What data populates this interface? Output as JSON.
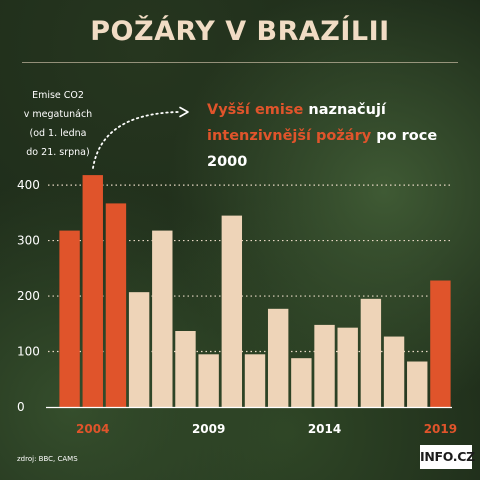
{
  "title": "POŽÁRY V BRAZÍLII",
  "ylabel_lines": [
    "Emise CO2",
    "v megatunách",
    "(od 1. ledna",
    "do 21. srpna)"
  ],
  "annotation": {
    "part1_accent": "Vyšší emise",
    "part2": " naznačují",
    "part3_accent": "intenzivnější požáry",
    "part4": " po roce 2000"
  },
  "source": "zdroj: BBC, CAMS",
  "brand": "INFO.CZ",
  "colors": {
    "highlight": "#e0542b",
    "normal": "#eed4b8",
    "tick_highlight": "#e0542b",
    "tick_normal": "#ffffff"
  },
  "chart_data": {
    "type": "bar",
    "title": "POŽÁRY V BRAZÍLII",
    "ylabel": "Emise CO2 v megatunách (od 1. ledna do 21. srpna)",
    "xlabel": "",
    "ylim": [
      0,
      420
    ],
    "yticks": [
      0,
      100,
      200,
      300,
      400
    ],
    "grid": true,
    "categories": [
      "2003",
      "2004",
      "2005",
      "2006",
      "2007",
      "2008",
      "2009",
      "2010",
      "2011",
      "2012",
      "2013",
      "2014",
      "2015",
      "2016",
      "2017",
      "2018",
      "2019"
    ],
    "values": [
      318,
      418,
      367,
      207,
      318,
      137,
      95,
      345,
      95,
      177,
      88,
      148,
      143,
      195,
      127,
      82,
      228
    ],
    "highlighted": [
      "2003",
      "2004",
      "2005",
      "2019"
    ],
    "xtick_labels": [
      {
        "category": "2004",
        "label": "2004",
        "highlight": true
      },
      {
        "category": "2009",
        "label": "2009",
        "highlight": false
      },
      {
        "category": "2014",
        "label": "2014",
        "highlight": false
      },
      {
        "category": "2019",
        "label": "2019",
        "highlight": true
      }
    ]
  }
}
